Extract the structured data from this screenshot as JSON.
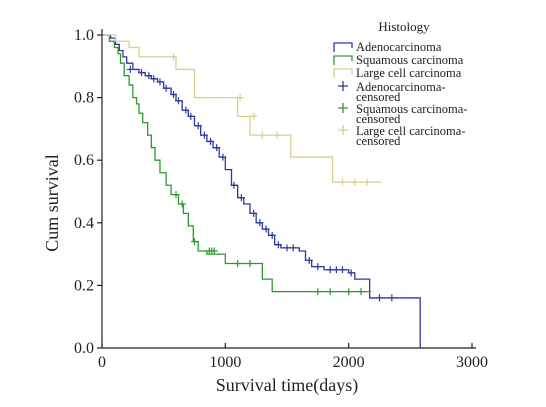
{
  "chart_data": {
    "type": "line",
    "subtype": "kaplan-meier step curve",
    "xlabel": "Survival time(days)",
    "ylabel": "Cum survival",
    "xlim": [
      0,
      3000
    ],
    "ylim": [
      0,
      1.0
    ],
    "x_ticks": [
      0,
      1000,
      2000,
      3000
    ],
    "y_ticks": [
      0.0,
      0.2,
      0.4,
      0.6,
      0.8,
      1.0
    ],
    "x_tick_labels": [
      "0",
      "1000",
      "2000",
      "3000"
    ],
    "y_tick_labels": [
      "0.0",
      "0.2",
      "0.4",
      "0.6",
      "0.8",
      "1.0"
    ],
    "grid": false,
    "legend": {
      "title": "Histology",
      "position": "top-right",
      "entries": [
        {
          "label": "Adenocarcinoma",
          "kind": "line",
          "color": "#2b3a9e"
        },
        {
          "label": "Squamous carcinoma",
          "kind": "line",
          "color": "#2e9a2e"
        },
        {
          "label": "Large cell carcinoma",
          "kind": "line",
          "color": "#d9cf8f"
        },
        {
          "label": "Adenocarcinoma-censored",
          "kind": "censor",
          "color": "#2b3a9e"
        },
        {
          "label": "Squamous carcinoma-censored",
          "kind": "censor",
          "color": "#2e9a2e"
        },
        {
          "label": "Large cell carcinoma-censored",
          "kind": "censor",
          "color": "#d9cf8f"
        }
      ]
    },
    "series": [
      {
        "name": "Adenocarcinoma",
        "color": "#2b3a9e",
        "steps": [
          [
            0,
            1.0
          ],
          [
            70,
            0.99
          ],
          [
            110,
            0.97
          ],
          [
            140,
            0.95
          ],
          [
            170,
            0.93
          ],
          [
            200,
            0.91
          ],
          [
            250,
            0.89
          ],
          [
            300,
            0.88
          ],
          [
            350,
            0.87
          ],
          [
            400,
            0.86
          ],
          [
            450,
            0.85
          ],
          [
            500,
            0.83
          ],
          [
            560,
            0.81
          ],
          [
            600,
            0.79
          ],
          [
            650,
            0.76
          ],
          [
            700,
            0.74
          ],
          [
            750,
            0.71
          ],
          [
            800,
            0.68
          ],
          [
            850,
            0.66
          ],
          [
            900,
            0.64
          ],
          [
            950,
            0.61
          ],
          [
            1000,
            0.57
          ],
          [
            1050,
            0.52
          ],
          [
            1100,
            0.48
          ],
          [
            1150,
            0.46
          ],
          [
            1200,
            0.43
          ],
          [
            1250,
            0.4
          ],
          [
            1300,
            0.38
          ],
          [
            1350,
            0.36
          ],
          [
            1400,
            0.33
          ],
          [
            1450,
            0.32
          ],
          [
            1600,
            0.31
          ],
          [
            1650,
            0.28
          ],
          [
            1700,
            0.26
          ],
          [
            1800,
            0.25
          ],
          [
            2000,
            0.24
          ],
          [
            2050,
            0.22
          ],
          [
            2170,
            0.16
          ],
          [
            2570,
            0.16
          ],
          [
            2580,
            0.0
          ]
        ],
        "censored": [
          [
            230,
            0.89
          ],
          [
            320,
            0.88
          ],
          [
            380,
            0.87
          ],
          [
            420,
            0.86
          ],
          [
            470,
            0.85
          ],
          [
            520,
            0.83
          ],
          [
            580,
            0.81
          ],
          [
            620,
            0.79
          ],
          [
            680,
            0.76
          ],
          [
            720,
            0.74
          ],
          [
            780,
            0.71
          ],
          [
            830,
            0.68
          ],
          [
            880,
            0.66
          ],
          [
            930,
            0.64
          ],
          [
            980,
            0.61
          ],
          [
            1070,
            0.52
          ],
          [
            1130,
            0.48
          ],
          [
            1230,
            0.43
          ],
          [
            1280,
            0.4
          ],
          [
            1330,
            0.38
          ],
          [
            1380,
            0.36
          ],
          [
            1430,
            0.33
          ],
          [
            1500,
            0.32
          ],
          [
            1550,
            0.32
          ],
          [
            1680,
            0.28
          ],
          [
            1750,
            0.26
          ],
          [
            1850,
            0.25
          ],
          [
            1900,
            0.25
          ],
          [
            1950,
            0.25
          ],
          [
            2020,
            0.24
          ],
          [
            2250,
            0.16
          ],
          [
            2350,
            0.16
          ]
        ]
      },
      {
        "name": "Squamous carcinoma",
        "color": "#2e9a2e",
        "steps": [
          [
            0,
            1.0
          ],
          [
            60,
            0.98
          ],
          [
            100,
            0.96
          ],
          [
            130,
            0.94
          ],
          [
            150,
            0.91
          ],
          [
            180,
            0.87
          ],
          [
            220,
            0.84
          ],
          [
            250,
            0.8
          ],
          [
            280,
            0.78
          ],
          [
            300,
            0.75
          ],
          [
            330,
            0.72
          ],
          [
            370,
            0.68
          ],
          [
            400,
            0.64
          ],
          [
            430,
            0.6
          ],
          [
            470,
            0.56
          ],
          [
            520,
            0.52
          ],
          [
            560,
            0.49
          ],
          [
            620,
            0.46
          ],
          [
            660,
            0.43
          ],
          [
            700,
            0.39
          ],
          [
            740,
            0.34
          ],
          [
            780,
            0.31
          ],
          [
            850,
            0.3
          ],
          [
            1000,
            0.27
          ],
          [
            1300,
            0.22
          ],
          [
            1380,
            0.18
          ],
          [
            2180,
            0.18
          ]
        ],
        "censored": [
          [
            600,
            0.49
          ],
          [
            650,
            0.46
          ],
          [
            750,
            0.34
          ],
          [
            870,
            0.31
          ],
          [
            890,
            0.31
          ],
          [
            910,
            0.31
          ],
          [
            1100,
            0.27
          ],
          [
            1200,
            0.27
          ],
          [
            1750,
            0.18
          ],
          [
            1850,
            0.18
          ],
          [
            2000,
            0.18
          ],
          [
            2100,
            0.18
          ]
        ]
      },
      {
        "name": "Large cell carcinoma",
        "color": "#d9cf8f",
        "steps": [
          [
            0,
            1.0
          ],
          [
            110,
            0.98
          ],
          [
            220,
            0.96
          ],
          [
            300,
            0.93
          ],
          [
            600,
            0.89
          ],
          [
            750,
            0.8
          ],
          [
            1100,
            0.74
          ],
          [
            1200,
            0.68
          ],
          [
            1530,
            0.61
          ],
          [
            1870,
            0.53
          ],
          [
            2270,
            0.53
          ]
        ],
        "censored": [
          [
            580,
            0.93
          ],
          [
            1120,
            0.8
          ],
          [
            1230,
            0.74
          ],
          [
            1300,
            0.68
          ],
          [
            1420,
            0.68
          ],
          [
            1950,
            0.53
          ],
          [
            2050,
            0.53
          ],
          [
            2150,
            0.53
          ]
        ]
      }
    ]
  }
}
